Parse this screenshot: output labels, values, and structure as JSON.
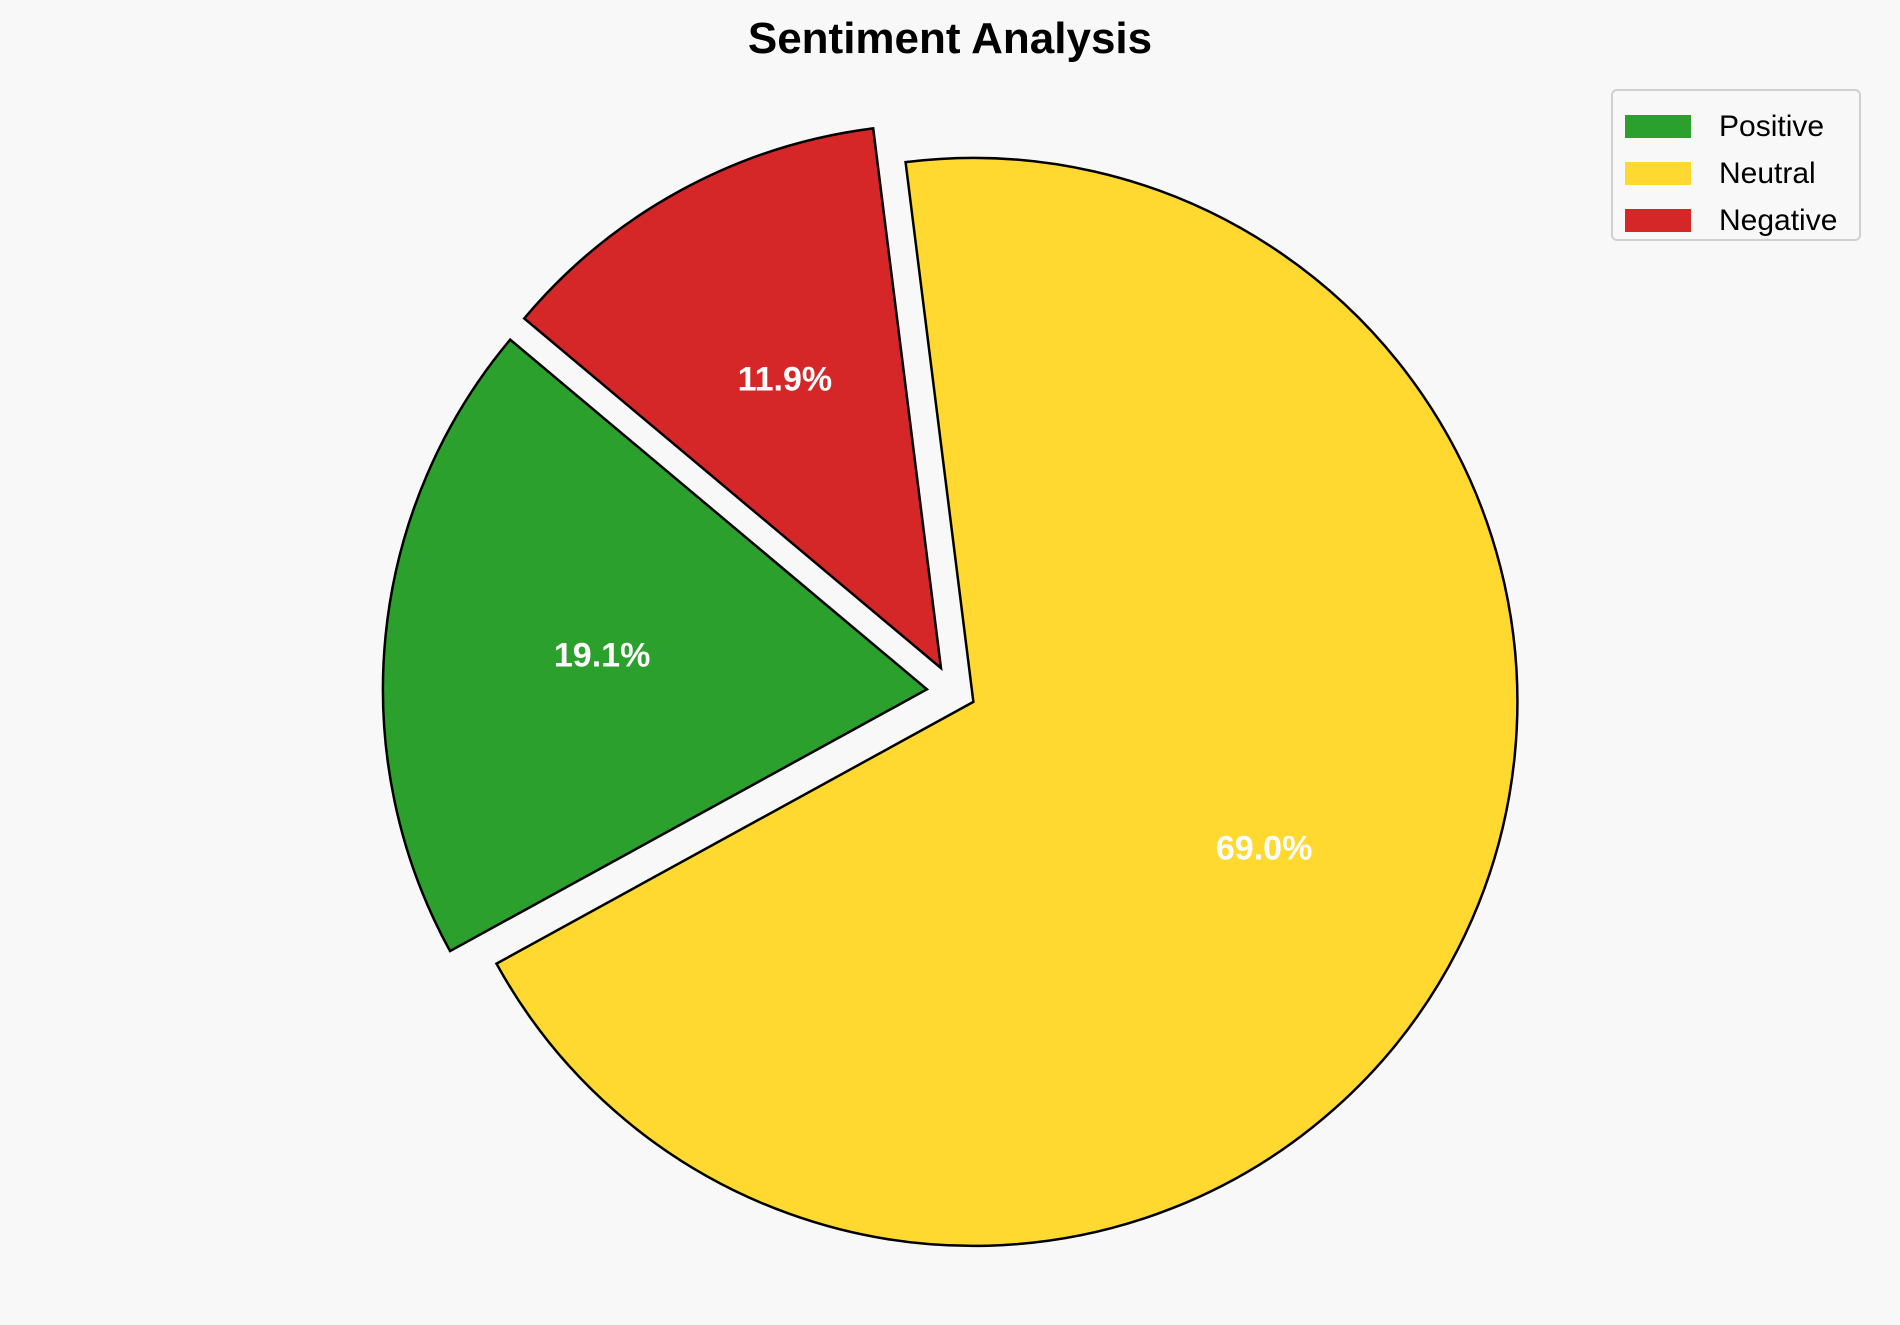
{
  "chart_data": {
    "type": "pie",
    "title": "Sentiment Analysis",
    "categories": [
      "Positive",
      "Neutral",
      "Negative"
    ],
    "values": [
      19.1,
      69.0,
      11.9
    ],
    "labels": [
      "19.1%",
      "69.0%",
      "11.9%"
    ],
    "colors": [
      "#2ca02c",
      "#ffd92f",
      "#d62728"
    ],
    "explode": [
      0.05,
      0.04,
      0.05
    ],
    "start_angle": 140,
    "legend_position": "top-right",
    "edge_color": "#000000"
  }
}
